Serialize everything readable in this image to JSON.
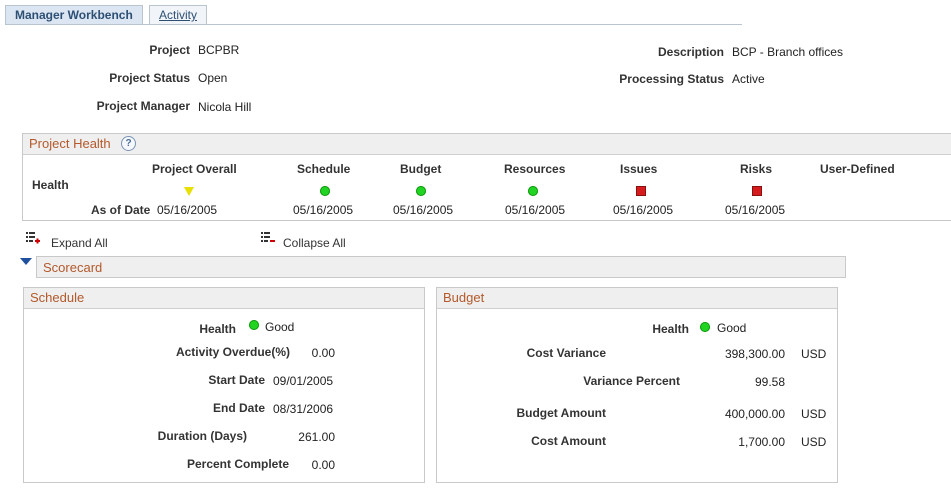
{
  "tabs": [
    {
      "label": "Manager Workbench"
    },
    {
      "label": "Activity"
    }
  ],
  "header": {
    "project_label": "Project",
    "project_value": "BCPBR",
    "status_label": "Project Status",
    "status_value": "Open",
    "manager_label": "Project Manager",
    "manager_value": "Nicola Hill",
    "description_label": "Description",
    "description_value": "BCP - Branch offices",
    "processing_label": "Processing Status",
    "processing_value": "Active"
  },
  "health": {
    "title": "Project Health",
    "help_glyph": "?",
    "row_health_label": "Health",
    "row_date_label": "As of Date",
    "columns": [
      {
        "label": "Project Overall",
        "status": "warning",
        "date": "05/16/2005"
      },
      {
        "label": "Schedule",
        "status": "good",
        "date": "05/16/2005"
      },
      {
        "label": "Budget",
        "status": "good",
        "date": "05/16/2005"
      },
      {
        "label": "Resources",
        "status": "good",
        "date": "05/16/2005"
      },
      {
        "label": "Issues",
        "status": "bad",
        "date": "05/16/2005"
      },
      {
        "label": "Risks",
        "status": "bad",
        "date": "05/16/2005"
      },
      {
        "label": "User-Defined",
        "status": "",
        "date": ""
      }
    ],
    "status_colors": {
      "good": "#22d422",
      "bad": "#d41c1c",
      "warning": "#e8e000"
    }
  },
  "controls": {
    "expand_all": "Expand All",
    "collapse_all": "Collapse All"
  },
  "scorecard": {
    "title": "Scorecard",
    "schedule": {
      "title": "Schedule",
      "health_label": "Health",
      "health_value": "Good",
      "overdue_label": "Activity Overdue(%)",
      "overdue_value": "0.00",
      "start_label": "Start Date",
      "start_value": "09/01/2005",
      "end_label": "End Date",
      "end_value": "08/31/2006",
      "duration_label": "Duration (Days)",
      "duration_value": "261.00",
      "pct_label": "Percent Complete",
      "pct_value": "0.00"
    },
    "budget": {
      "title": "Budget",
      "health_label": "Health",
      "health_value": "Good",
      "cost_var_label": "Cost Variance",
      "cost_var_value": "398,300.00",
      "cost_var_cur": "USD",
      "var_pct_label": "Variance Percent",
      "var_pct_value": "99.58",
      "budget_amt_label": "Budget Amount",
      "budget_amt_value": "400,000.00",
      "budget_amt_cur": "USD",
      "cost_amt_label": "Cost Amount",
      "cost_amt_value": "1,700.00",
      "cost_amt_cur": "USD"
    }
  }
}
